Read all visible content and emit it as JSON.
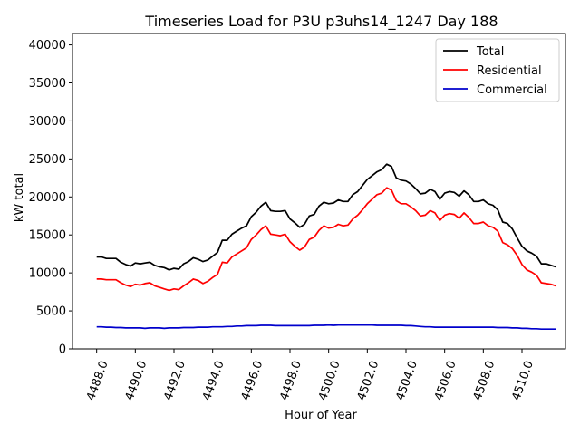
{
  "chart_data": {
    "type": "line",
    "title": "Timeseries Load for P3U p3uhs14_1247  Day 188",
    "xlabel": "Hour of Year",
    "ylabel": "kW total",
    "xlim": [
      4486.75,
      4512.25
    ],
    "ylim": [
      0,
      41500
    ],
    "xticks": [
      4488,
      4490,
      4492,
      4494,
      4496,
      4498,
      4500,
      4502,
      4504,
      4506,
      4508,
      4510
    ],
    "xtick_labels": [
      "4488.0",
      "4490.0",
      "4492.0",
      "4494.0",
      "4496.0",
      "4498.0",
      "4500.0",
      "4502.0",
      "4504.0",
      "4506.0",
      "4508.0",
      "4510.0"
    ],
    "yticks": [
      0,
      5000,
      10000,
      15000,
      20000,
      25000,
      30000,
      35000,
      40000
    ],
    "ytick_labels": [
      "0",
      "5000",
      "10000",
      "15000",
      "20000",
      "25000",
      "30000",
      "35000",
      "40000"
    ],
    "legend_position": "top-right",
    "x": [
      4488.0,
      4488.25,
      4488.5,
      4488.75,
      4489.0,
      4489.25,
      4489.5,
      4489.75,
      4490.0,
      4490.25,
      4490.5,
      4490.75,
      4491.0,
      4491.25,
      4491.5,
      4491.75,
      4492.0,
      4492.25,
      4492.5,
      4492.75,
      4493.0,
      4493.25,
      4493.5,
      4493.75,
      4494.0,
      4494.25,
      4494.5,
      4494.75,
      4495.0,
      4495.25,
      4495.5,
      4495.75,
      4496.0,
      4496.25,
      4496.5,
      4496.75,
      4497.0,
      4497.25,
      4497.5,
      4497.75,
      4498.0,
      4498.25,
      4498.5,
      4498.75,
      4499.0,
      4499.25,
      4499.5,
      4499.75,
      4500.0,
      4500.25,
      4500.5,
      4500.75,
      4501.0,
      4501.25,
      4501.5,
      4501.75,
      4502.0,
      4502.25,
      4502.5,
      4502.75,
      4503.0,
      4503.25,
      4503.5,
      4503.75,
      4504.0,
      4504.25,
      4504.5,
      4504.75,
      4505.0,
      4505.25,
      4505.5,
      4505.75,
      4506.0,
      4506.25,
      4506.5,
      4506.75,
      4507.0,
      4507.25,
      4507.5,
      4507.75,
      4508.0,
      4508.25,
      4508.5,
      4508.75,
      4509.0,
      4509.25,
      4509.5,
      4509.75,
      4510.0,
      4510.25,
      4510.5,
      4510.75,
      4511.0,
      4511.25,
      4511.5,
      4511.75
    ],
    "series": [
      {
        "name": "Total",
        "color": "#000000",
        "values": [
          12100,
          12100,
          11900,
          11900,
          11900,
          11400,
          11100,
          10900,
          11300,
          11200,
          11300,
          11400,
          11000,
          10800,
          10700,
          10400,
          10600,
          10500,
          11200,
          11500,
          12000,
          11800,
          11500,
          11700,
          12200,
          12700,
          14300,
          14300,
          15100,
          15500,
          15900,
          16200,
          17400,
          18000,
          18800,
          19300,
          18200,
          18100,
          18100,
          18200,
          17100,
          16600,
          16000,
          16400,
          17500,
          17700,
          18800,
          19300,
          19100,
          19200,
          19600,
          19400,
          19400,
          20300,
          20700,
          21500,
          22300,
          22800,
          23300,
          23600,
          24300,
          24000,
          22500,
          22200,
          22100,
          21700,
          21100,
          20400,
          20500,
          21000,
          20700,
          19700,
          20500,
          20700,
          20600,
          20100,
          20800,
          20300,
          19400,
          19400,
          19600,
          19100,
          18900,
          18300,
          16700,
          16500,
          15800,
          14600,
          13500,
          12900,
          12600,
          12200,
          11200,
          11200,
          11000,
          10800
        ]
      },
      {
        "name": "Residential",
        "color": "#ff0000",
        "values": [
          9200,
          9200,
          9100,
          9100,
          9100,
          8700,
          8400,
          8200,
          8500,
          8400,
          8600,
          8700,
          8300,
          8100,
          7900,
          7700,
          7900,
          7800,
          8300,
          8700,
          9200,
          9000,
          8600,
          8900,
          9400,
          9800,
          11400,
          11300,
          12100,
          12500,
          12900,
          13300,
          14400,
          15000,
          15700,
          16200,
          15100,
          15000,
          14900,
          15100,
          14100,
          13500,
          13000,
          13400,
          14400,
          14700,
          15600,
          16200,
          15900,
          16000,
          16400,
          16200,
          16300,
          17100,
          17600,
          18300,
          19100,
          19700,
          20300,
          20500,
          21200,
          20900,
          19500,
          19100,
          19100,
          18700,
          18200,
          17500,
          17600,
          18200,
          17900,
          16900,
          17600,
          17800,
          17700,
          17200,
          17900,
          17300,
          16500,
          16500,
          16700,
          16200,
          16000,
          15500,
          14000,
          13700,
          13200,
          12300,
          11100,
          10400,
          10100,
          9700,
          8700,
          8600,
          8500,
          8300
        ]
      },
      {
        "name": "Commercial",
        "color": "#0000cc",
        "values": [
          2900,
          2900,
          2850,
          2850,
          2800,
          2800,
          2750,
          2750,
          2750,
          2750,
          2700,
          2750,
          2750,
          2750,
          2700,
          2750,
          2750,
          2750,
          2800,
          2800,
          2800,
          2850,
          2850,
          2850,
          2900,
          2900,
          2900,
          2950,
          2950,
          3000,
          3000,
          3050,
          3050,
          3050,
          3100,
          3100,
          3100,
          3050,
          3050,
          3050,
          3050,
          3050,
          3050,
          3050,
          3050,
          3100,
          3100,
          3100,
          3150,
          3100,
          3150,
          3150,
          3150,
          3150,
          3150,
          3150,
          3150,
          3150,
          3100,
          3100,
          3100,
          3100,
          3100,
          3100,
          3050,
          3050,
          3000,
          2950,
          2900,
          2900,
          2850,
          2850,
          2850,
          2850,
          2850,
          2850,
          2850,
          2850,
          2850,
          2850,
          2850,
          2850,
          2850,
          2800,
          2800,
          2800,
          2750,
          2750,
          2700,
          2700,
          2650,
          2650,
          2600,
          2600,
          2600,
          2600
        ]
      }
    ]
  }
}
